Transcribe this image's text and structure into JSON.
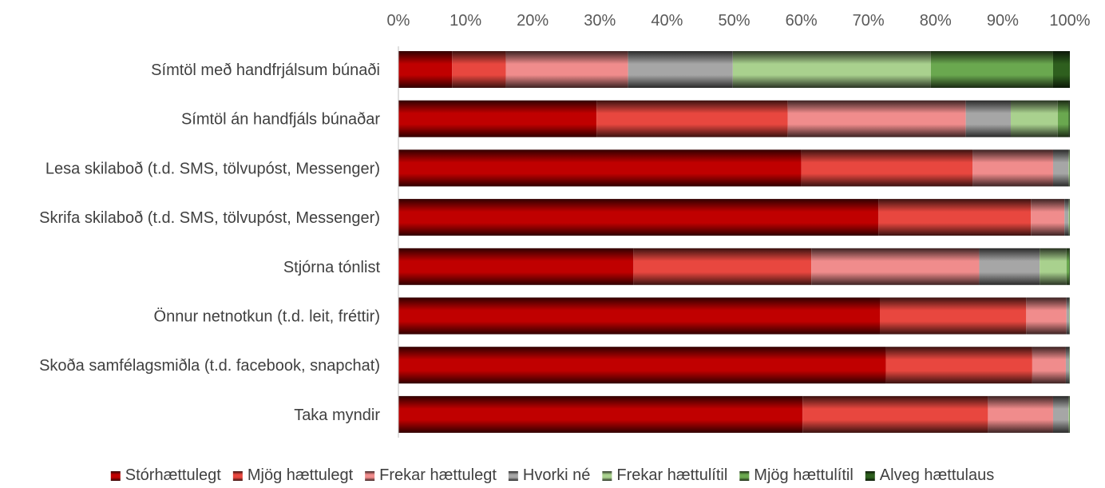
{
  "chart_data": {
    "type": "bar",
    "orientation": "horizontal",
    "stacked": "percent",
    "title": "",
    "xlabel": "",
    "ylabel": "",
    "xlim": [
      0,
      100
    ],
    "x_ticks": [
      "0%",
      "10%",
      "20%",
      "30%",
      "40%",
      "50%",
      "60%",
      "70%",
      "80%",
      "90%",
      "100%"
    ],
    "x_axis_position": "top",
    "grid": false,
    "legend": "bottom",
    "categories": [
      "Símtöl með handfrjálsum búnaði",
      "Símtöl án handfjáls búnaðar",
      "Lesa skilaboð (t.d. SMS, tölvupóst, Messenger)",
      "Skrifa skilaboð (t.d. SMS, tölvupóst, Messenger)",
      "Stjórna tónlist",
      "Önnur netnotkun (t.d. leit, fréttir)",
      "Skoða samfélagsmiðla (t.d. facebook, snapchat)",
      "Taka myndir"
    ],
    "series": [
      {
        "name": "Stórhættulegt",
        "color": "#c00000",
        "values": [
          8,
          29.5,
          60,
          71.5,
          35,
          71.7,
          72.6,
          60.2
        ]
      },
      {
        "name": "Mjög hættulegt",
        "color": "#e8473f",
        "values": [
          8,
          28.5,
          25.5,
          22.7,
          26.5,
          21.8,
          21.8,
          27.6
        ]
      },
      {
        "name": "Frekar hættulegt",
        "color": "#f08c8c",
        "values": [
          18.2,
          26.5,
          12,
          5,
          25,
          6,
          5,
          9.7
        ]
      },
      {
        "name": "Hvorki né",
        "color": "#a6a6a6",
        "values": [
          15.6,
          6.7,
          2.3,
          0.6,
          9,
          0.4,
          0.5,
          2.3
        ]
      },
      {
        "name": "Frekar hættulítil",
        "color": "#a9d18e",
        "values": [
          29.5,
          7,
          0.1,
          0.1,
          4,
          0.05,
          0.05,
          0.1
        ]
      },
      {
        "name": "Mjög hættulítil",
        "color": "#6aa84f",
        "values": [
          18.2,
          1.6,
          0.05,
          0.05,
          0.4,
          0.03,
          0.03,
          0.05
        ]
      },
      {
        "name": "Alveg hættulaus",
        "color": "#2e5f1e",
        "values": [
          2.5,
          0.2,
          0.05,
          0.05,
          0.1,
          0.02,
          0.02,
          0.05
        ]
      }
    ]
  }
}
